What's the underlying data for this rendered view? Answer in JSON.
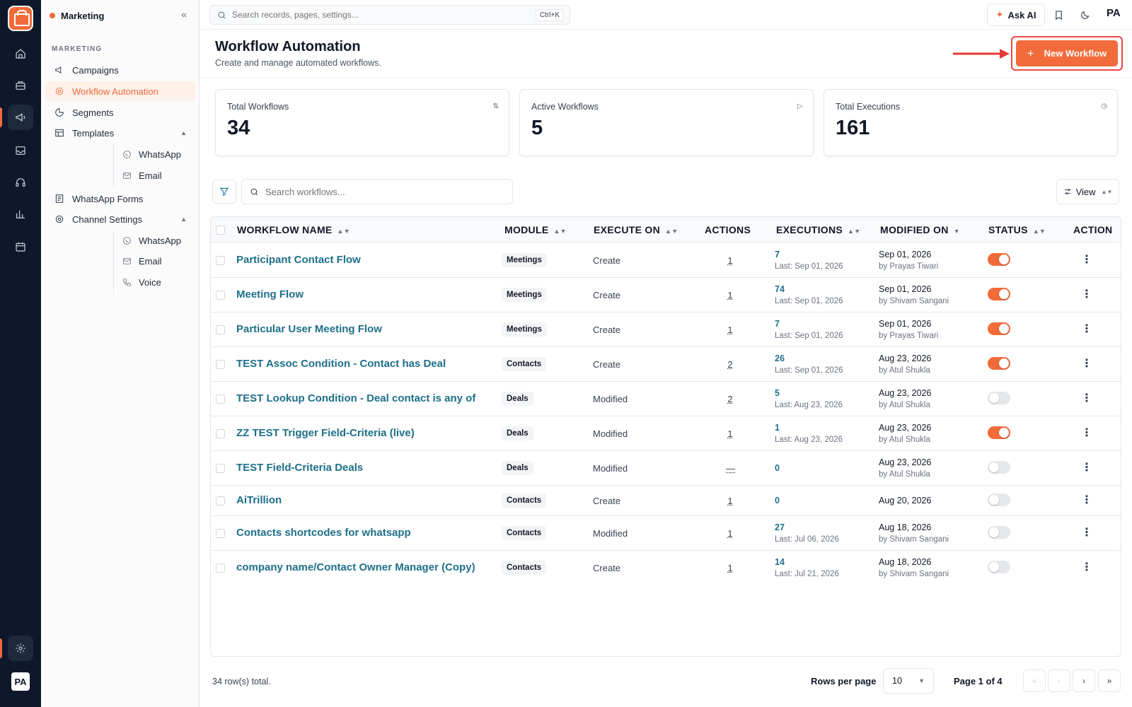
{
  "sidebar": {
    "title": "Marketing",
    "collapse_glyph": "«",
    "section": "MARKETING",
    "items": [
      {
        "label": "Campaigns",
        "icon": "megaphone-icon"
      },
      {
        "label": "Workflow Automation",
        "icon": "workflow-icon"
      },
      {
        "label": "Segments",
        "icon": "pie-chart-icon"
      },
      {
        "label": "Templates",
        "icon": "template-icon"
      },
      {
        "label": "WhatsApp",
        "icon": "whatsapp-icon"
      },
      {
        "label": "Email",
        "icon": "mail-icon"
      },
      {
        "label": "WhatsApp Forms",
        "icon": "form-icon"
      },
      {
        "label": "Channel Settings",
        "icon": "gear-icon"
      },
      {
        "label": "WhatsApp",
        "icon": "whatsapp-icon"
      },
      {
        "label": "Email",
        "icon": "mail-icon"
      },
      {
        "label": "Voice",
        "icon": "phone-icon"
      }
    ]
  },
  "rail": {
    "avatar": "PA",
    "accent": "#f26b3a"
  },
  "topbar": {
    "search_placeholder": "Search records, pages, settings...",
    "shortcut": "Ctrl+K",
    "ask_ai": "Ask AI",
    "avatar": "PA"
  },
  "header": {
    "title": "Workflow Automation",
    "subtitle": "Create and manage automated workflows.",
    "new_button": "New Workflow"
  },
  "stats": [
    {
      "label": "Total Workflows",
      "value": "34",
      "icon": "sort-icon"
    },
    {
      "label": "Active Workflows",
      "value": "5",
      "icon": "play-icon"
    },
    {
      "label": "Total Executions",
      "value": "161",
      "icon": "clock-icon"
    }
  ],
  "toolbar": {
    "search_placeholder": "Search workflows...",
    "view_label": "View"
  },
  "table": {
    "columns": {
      "name": "WORKFLOW NAME",
      "module": "MODULE",
      "execute_on": "EXECUTE ON",
      "actions": "ACTIONS",
      "executions": "EXECUTIONS",
      "modified_on": "MODIFIED ON",
      "status": "STATUS",
      "action": "ACTION"
    },
    "rows": [
      {
        "name": "Participant Contact Flow",
        "module": "Meetings",
        "execute_on": "Create",
        "actions": "1",
        "executions": "7",
        "last": "Last: Sep 01, 2026",
        "modified": "Sep 01, 2026",
        "by": "by Prayas Tiwari",
        "active": true
      },
      {
        "name": "Meeting Flow",
        "module": "Meetings",
        "execute_on": "Create",
        "actions": "1",
        "executions": "74",
        "last": "Last: Sep 01, 2026",
        "modified": "Sep 01, 2026",
        "by": "by Shivam Sangani",
        "active": true
      },
      {
        "name": "Particular User Meeting Flow",
        "module": "Meetings",
        "execute_on": "Create",
        "actions": "1",
        "executions": "7",
        "last": "Last: Sep 01, 2026",
        "modified": "Sep 01, 2026",
        "by": "by Prayas Tiwari",
        "active": true
      },
      {
        "name": "TEST Assoc Condition - Contact has Deal",
        "module": "Contacts",
        "execute_on": "Create",
        "actions": "2",
        "executions": "26",
        "last": "Last: Sep 01, 2026",
        "modified": "Aug 23, 2026",
        "by": "by Atul Shukla",
        "active": true
      },
      {
        "name": "TEST Lookup Condition - Deal contact is any of",
        "module": "Deals",
        "execute_on": "Modified",
        "actions": "2",
        "executions": "5",
        "last": "Last: Aug 23, 2026",
        "modified": "Aug 23, 2026",
        "by": "by Atul Shukla",
        "active": false
      },
      {
        "name": "ZZ TEST Trigger Field-Criteria (live)",
        "module": "Deals",
        "execute_on": "Modified",
        "actions": "1",
        "executions": "1",
        "last": "Last: Aug 23, 2026",
        "modified": "Aug 23, 2026",
        "by": "by Atul Shukla",
        "active": true
      },
      {
        "name": "TEST Field-Criteria Deals",
        "module": "Deals",
        "execute_on": "Modified",
        "actions": "—",
        "executions": "0",
        "last": "",
        "modified": "Aug 23, 2026",
        "by": "by Atul Shukla",
        "active": false
      },
      {
        "name": "AiTrillion",
        "module": "Contacts",
        "execute_on": "Create",
        "actions": "1",
        "executions": "0",
        "last": "",
        "modified": "Aug 20, 2026",
        "by": "",
        "active": false
      },
      {
        "name": "Contacts shortcodes for whatsapp",
        "module": "Contacts",
        "execute_on": "Modified",
        "actions": "1",
        "executions": "27",
        "last": "Last: Jul 06, 2026",
        "modified": "Aug 18, 2026",
        "by": "by Shivam Sangani",
        "active": false
      },
      {
        "name": "company name/Contact Owner Manager (Copy)",
        "module": "Contacts",
        "execute_on": "Create",
        "actions": "1",
        "executions": "14",
        "last": "Last: Jul 21, 2026",
        "modified": "Aug 18, 2026",
        "by": "by Shivam Sangani",
        "active": false
      }
    ]
  },
  "footer": {
    "rows_total": "34 row(s) total.",
    "rows_per_page_label": "Rows per page",
    "rows_per_page": "10",
    "page_of": "Page 1 of 4"
  }
}
